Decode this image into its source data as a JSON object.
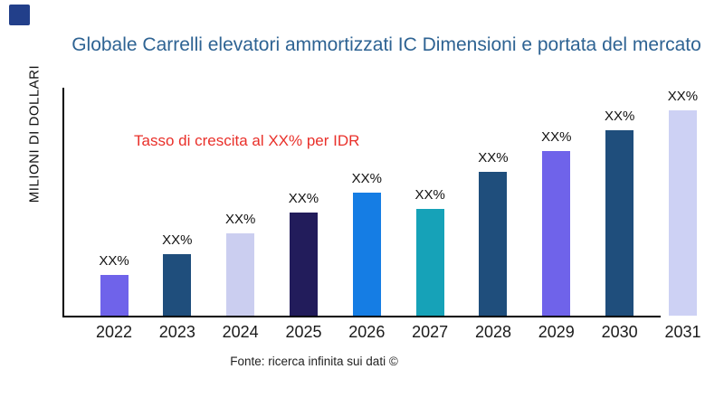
{
  "decor": {
    "corner_square_color": "#223F8A"
  },
  "chart_data": {
    "type": "bar",
    "title": "Globale Carrelli elevatori ammortizzati IC Dimensioni e portata del mercato",
    "title_color": "#2E6393",
    "ylabel": "MILIONI DI DOLLARI",
    "xlabel": "",
    "annotation": "Tasso di crescita al XX% per IDR",
    "annotation_color": "#E9302A",
    "source": "Fonte: ricerca infinita sui dati ©",
    "categories": [
      "2022",
      "2023",
      "2024",
      "2025",
      "2026",
      "2027",
      "2028",
      "2029",
      "2030",
      "2031"
    ],
    "values": [
      2,
      3,
      4,
      5,
      6,
      5.2,
      7,
      8,
      9,
      10
    ],
    "bar_labels": [
      "XX%",
      "XX%",
      "XX%",
      "XX%",
      "XX%",
      "XX%",
      "XX%",
      "XX%",
      "XX%",
      "XX%"
    ],
    "bar_colors": [
      "#6F63EA",
      "#1F4E7C",
      "#CBCEF0",
      "#221C5B",
      "#157DE4",
      "#16A2B8",
      "#1F4E7C",
      "#6F63EA",
      "#1F4E7C",
      "#CDD1F4"
    ],
    "ylim": [
      0,
      11
    ],
    "grid": false,
    "legend": false,
    "axis_color": "#000000"
  }
}
